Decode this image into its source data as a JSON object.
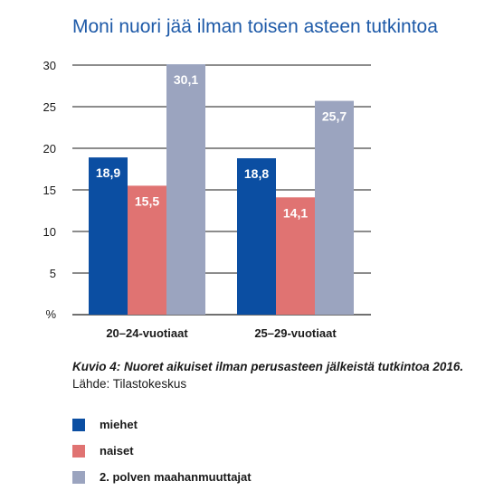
{
  "title": "Moni nuori jää ilman toisen asteen tutkintoa",
  "caption": {
    "italic": "Kuvio 4: Nuoret aikuiset ilman perusasteen jälkeistä tutkintoa 2016.",
    "source": "Lähde: Tilastokeskus"
  },
  "chart_data": {
    "type": "bar",
    "title": "Moni nuori jää ilman toisen asteen tutkintoa",
    "xlabel": "",
    "ylabel": "%",
    "ylim": [
      0,
      30
    ],
    "yticks": [
      30,
      25,
      20,
      15,
      10,
      5
    ],
    "y_unit_label": "%",
    "grid": true,
    "legend_position": "bottom",
    "categories": [
      "20–24-vuotiaat",
      "25–29-vuotiaat"
    ],
    "series": [
      {
        "name": "miehet",
        "color": "#0b4ea2",
        "values": [
          18.9,
          18.8
        ],
        "labels": [
          "18,9",
          "18,8"
        ]
      },
      {
        "name": "naiset",
        "color": "#e07372",
        "values": [
          15.5,
          14.1
        ],
        "labels": [
          "15,5",
          "14,1"
        ]
      },
      {
        "name": "2. polven maahanmuuttajat",
        "color": "#9ba4bf",
        "values": [
          30.1,
          25.7
        ],
        "labels": [
          "30,1",
          "25,7"
        ]
      }
    ]
  }
}
